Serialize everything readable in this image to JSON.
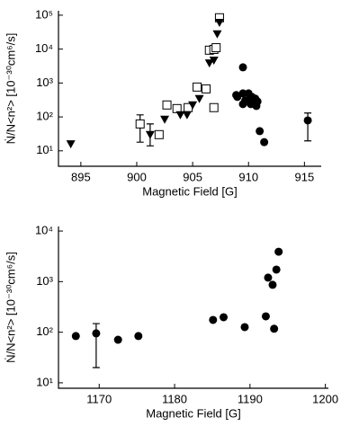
{
  "chart_data": [
    {
      "type": "scatter",
      "xlabel": "Magnetic Field [G]",
      "ylabel": "Ṅ/N<n²> [10⁻³⁰cm⁶/s]",
      "log_y": true,
      "xlim": [
        893.0,
        916.5
      ],
      "ylim": [
        3.5,
        135000
      ],
      "xticks": [
        895,
        900,
        905,
        910,
        915
      ],
      "yticks": [
        {
          "value": 10,
          "label": "10¹"
        },
        {
          "value": 100,
          "label": "10²"
        },
        {
          "value": 1000,
          "label": "10³"
        },
        {
          "value": 10000,
          "label": "10⁴"
        },
        {
          "value": 100000,
          "label": "10⁵"
        }
      ],
      "series": [
        {
          "marker": "square",
          "color": "#000000",
          "x": [
            900.3,
            902.0,
            902.7,
            903.6,
            904.6,
            905.4,
            906.2,
            906.9,
            906.5,
            906.9,
            907.1,
            907.4
          ],
          "values": [
            62,
            30,
            225,
            176,
            188,
            760,
            670,
            188,
            9300,
            9800,
            11000,
            84000
          ]
        },
        {
          "marker": "triangle-down",
          "color": "#000000",
          "x": [
            894.1,
            901.2,
            902.5,
            903.9,
            904.5,
            905.0,
            905.6,
            906.5,
            906.9,
            907.2,
            907.4
          ],
          "values": [
            16,
            30,
            85,
            115,
            115,
            225,
            345,
            3900,
            4700,
            28000,
            61000
          ]
        },
        {
          "marker": "circle",
          "color": "#000000",
          "x": [
            909.5,
            908.9,
            909.5,
            910.0,
            910.3,
            909.7,
            910.0,
            910.6,
            910.8,
            909.5,
            910.2,
            910.7,
            909.0,
            911.0,
            911.4,
            915.3
          ],
          "values": [
            2900,
            440,
            495,
            495,
            390,
            305,
            305,
            345,
            285,
            238,
            238,
            210,
            390,
            38,
            18,
            79
          ]
        }
      ],
      "error_bars": [
        {
          "x": 900.3,
          "low": 18,
          "high": 115
        },
        {
          "x": 901.2,
          "low": 14,
          "high": 62
        },
        {
          "x": 915.3,
          "low": 19.6,
          "high": 130
        }
      ]
    },
    {
      "type": "scatter",
      "xlabel": "Magnetic Field [G]",
      "ylabel": "Ṅ/N<n²> [10⁻³⁰cm⁶/s]",
      "log_y": true,
      "xlim": [
        1164.6,
        1200.4
      ],
      "ylim": [
        7.8,
        12300
      ],
      "xticks": [
        1170,
        1180,
        1190,
        1200
      ],
      "yticks": [
        {
          "value": 10,
          "label": "10¹"
        },
        {
          "value": 100,
          "label": "10²"
        },
        {
          "value": 1000,
          "label": "10³"
        },
        {
          "value": 10000,
          "label": "10⁴"
        }
      ],
      "series": [
        {
          "marker": "circle",
          "color": "#000000",
          "x": [
            1166.9,
            1169.6,
            1172.5,
            1175.2,
            1185.1,
            1186.5,
            1189.3,
            1192.1,
            1192.4,
            1193.0,
            1193.5,
            1193.8,
            1193.2
          ],
          "values": [
            84,
            95,
            71,
            84,
            175,
            198,
            126,
            206,
            1200,
            865,
            1730,
            3900,
            117
          ]
        }
      ],
      "error_bars": [
        {
          "x": 1169.6,
          "low": 20,
          "high": 148
        }
      ]
    }
  ]
}
